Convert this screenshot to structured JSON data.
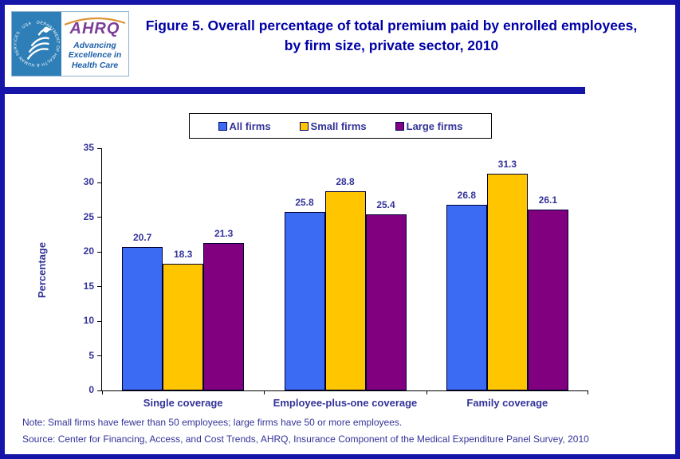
{
  "header": {
    "title": "Figure 5. Overall percentage of total premium paid by enrolled employees, by firm size, private sector, 2010",
    "logo": {
      "org": "AHRQ",
      "tagline": "Advancing Excellence in Health Care",
      "seal_text": "DEPARTMENT OF HEALTH & HUMAN SERVICES · USA"
    }
  },
  "chart_data": {
    "type": "bar",
    "categories": [
      "Single coverage",
      "Employee-plus-one coverage",
      "Family coverage"
    ],
    "series": [
      {
        "name": "All firms",
        "color": "#3B6BF2",
        "values": [
          20.7,
          25.8,
          26.8
        ]
      },
      {
        "name": "Small firms",
        "color": "#FFC600",
        "values": [
          18.3,
          28.8,
          31.3
        ]
      },
      {
        "name": "Large firms",
        "color": "#800080",
        "values": [
          21.3,
          25.4,
          26.1
        ]
      }
    ],
    "ylabel": "Percentage",
    "ylim": [
      0,
      35
    ],
    "ytick_step": 5,
    "legend_position": "top",
    "grid": false
  },
  "notes": {
    "note": "Note: Small firms have fewer than 50 employees; large firms have 50 or more employees.",
    "source": "Source: Center for Financing, Access, and Cost Trends, AHRQ, Insurance Component of the Medical Expenditure Panel Survey, 2010"
  },
  "colors": {
    "frame": "#1515A9",
    "title_text": "#0000A6",
    "chart_text": "#333399",
    "axis": "#000000",
    "bar_border": "#000033"
  }
}
